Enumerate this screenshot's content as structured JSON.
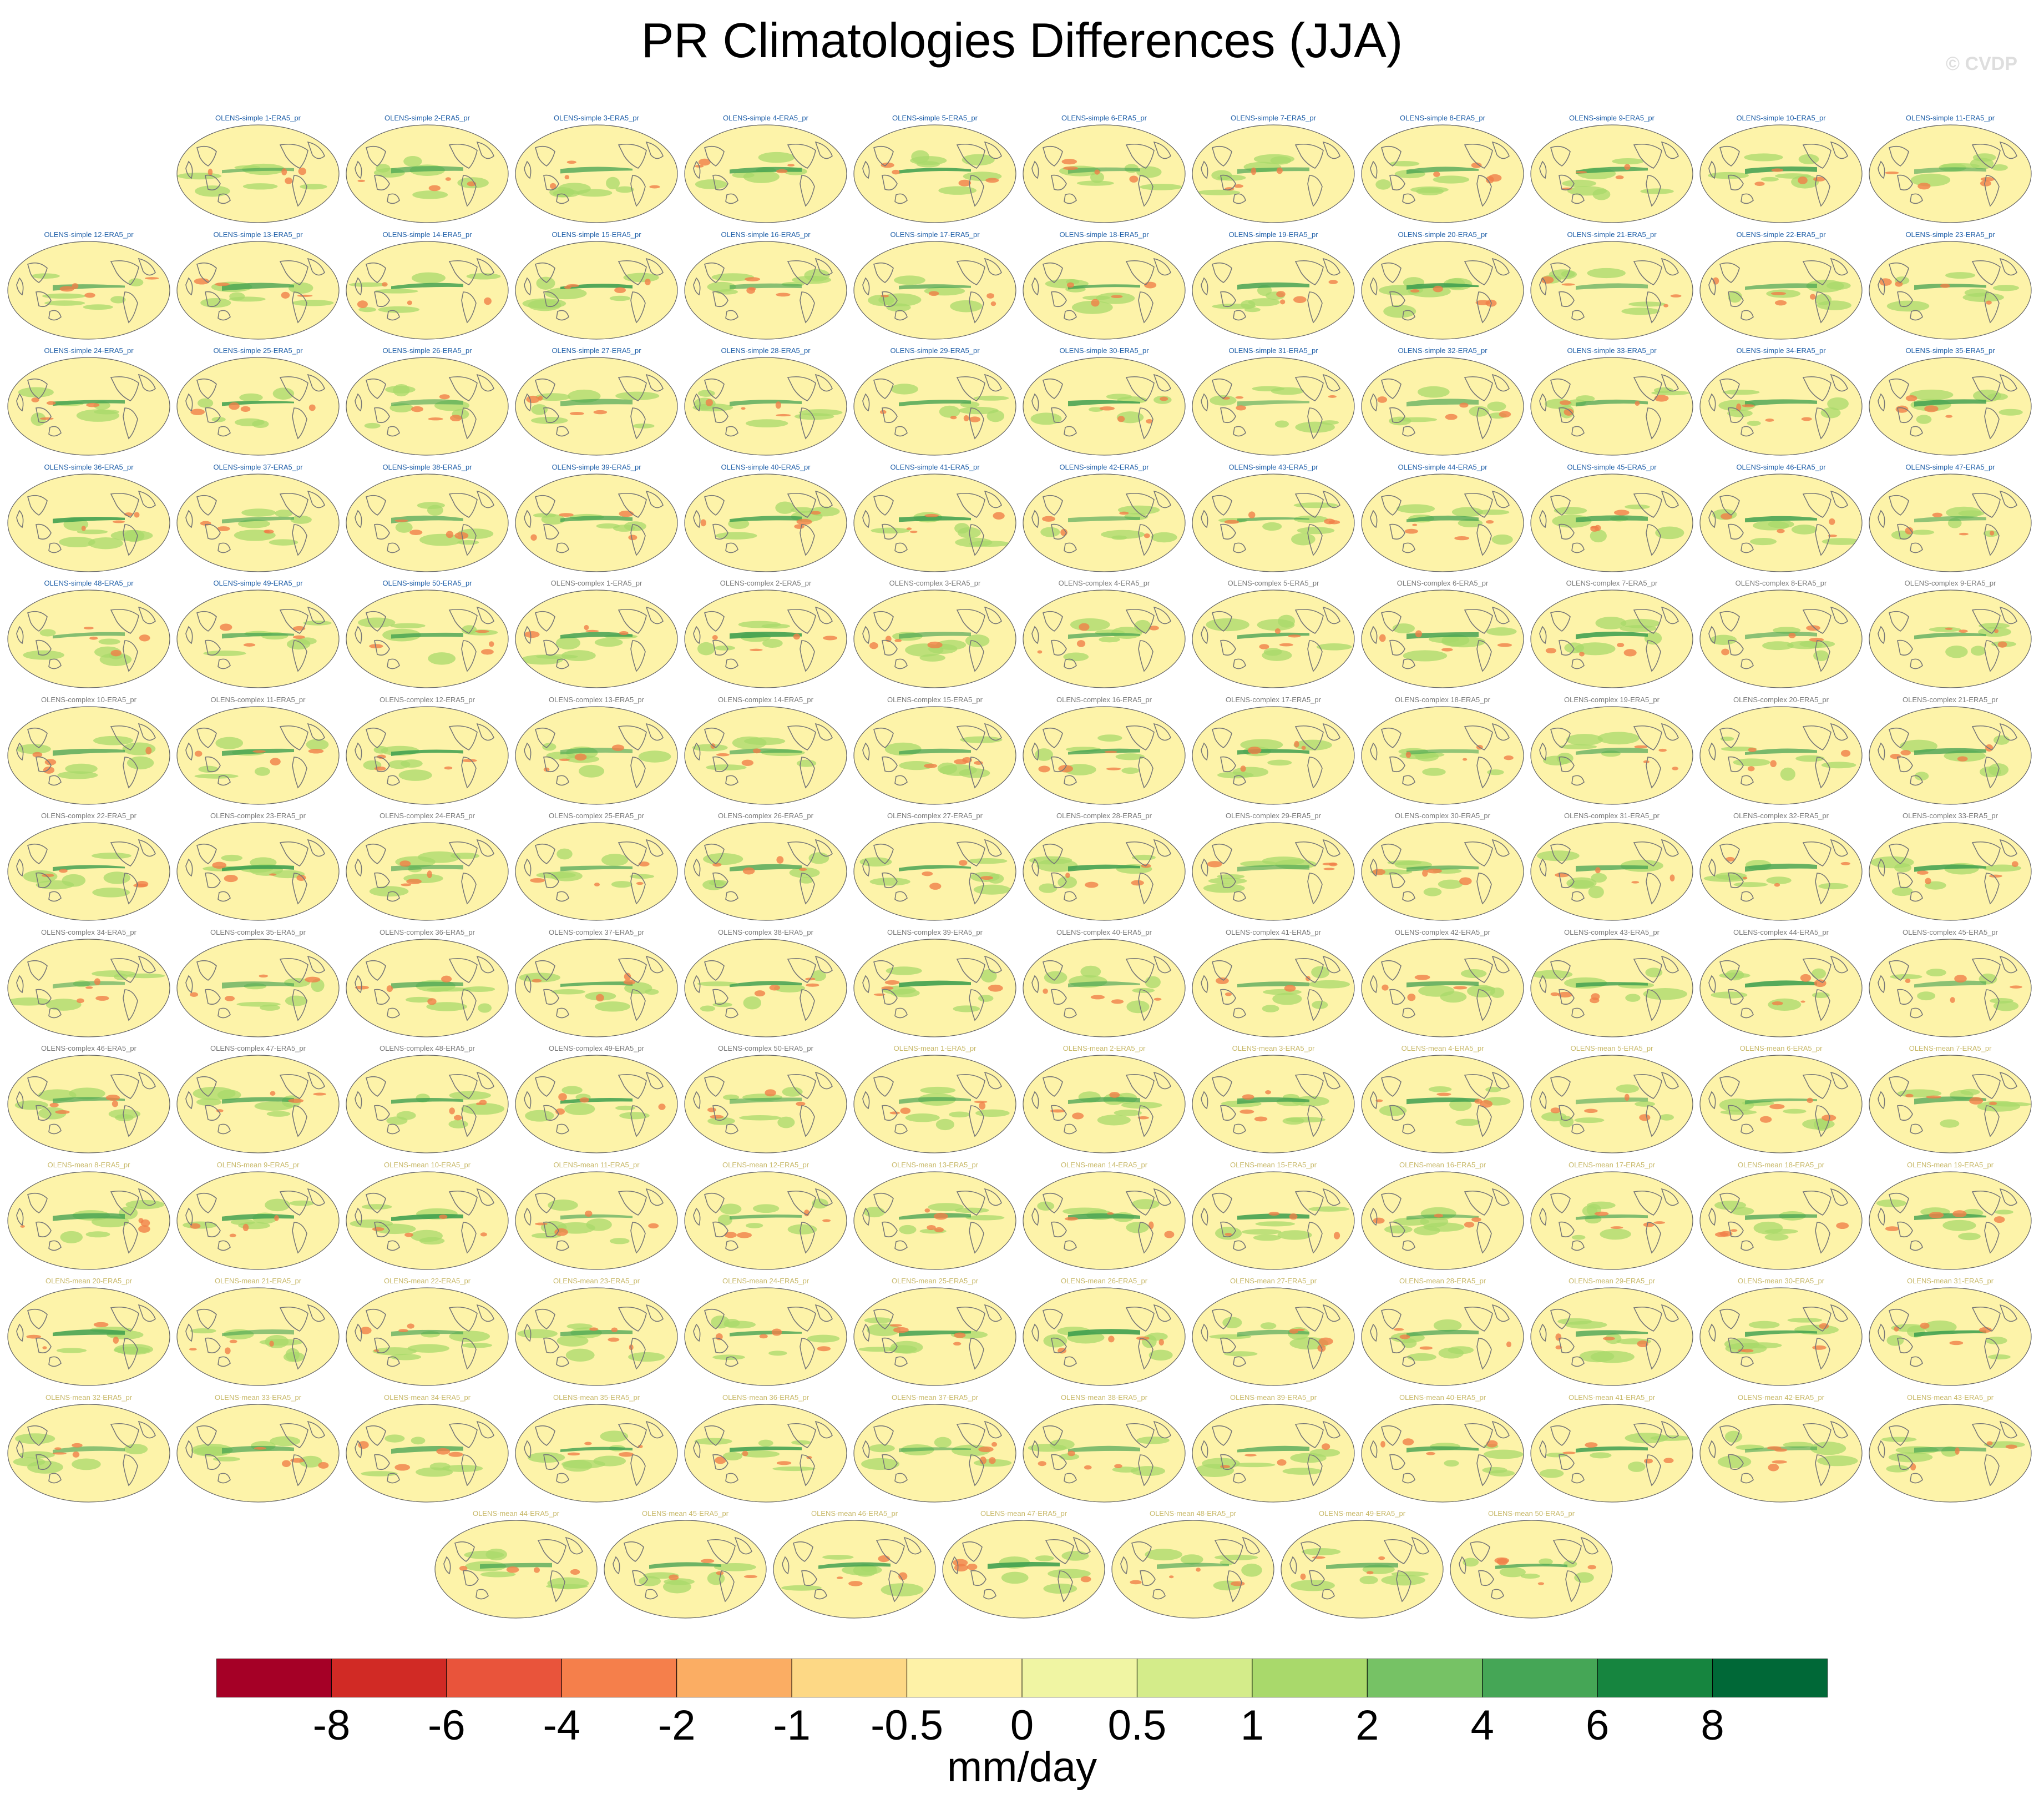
{
  "title": "PR Climatologies Differences (JJA)",
  "watermark": "© CVDP",
  "chart_data": {
    "type": "heatmap",
    "description_variable": "pr",
    "season": "JJA",
    "reference": "ERA5",
    "units": "mm/day",
    "colorbar": {
      "levels": [
        "-8",
        "-6",
        "-4",
        "-2",
        "-1",
        "-0.5",
        "0",
        "0.5",
        "1",
        "2",
        "4",
        "6",
        "8"
      ],
      "colors": [
        "#a50026",
        "#d12a25",
        "#e9543b",
        "#f57f4b",
        "#fbad63",
        "#fdd885",
        "#fef2a7",
        "#f0f5a3",
        "#d4ec8a",
        "#a9d96b",
        "#76c265",
        "#45a656",
        "#16853f",
        "#006837"
      ]
    },
    "panel_rows": [
      [
        "OLENS-simple 1-ERA5_pr",
        "OLENS-simple 2-ERA5_pr",
        "OLENS-simple 3-ERA5_pr",
        "OLENS-simple 4-ERA5_pr",
        "OLENS-simple 5-ERA5_pr",
        "OLENS-simple 6-ERA5_pr",
        "OLENS-simple 7-ERA5_pr",
        "OLENS-simple 8-ERA5_pr",
        "OLENS-simple 9-ERA5_pr",
        "OLENS-simple 10-ERA5_pr",
        "OLENS-simple 11-ERA5_pr"
      ],
      [
        "OLENS-simple 12-ERA5_pr",
        "OLENS-simple 13-ERA5_pr",
        "OLENS-simple 14-ERA5_pr",
        "OLENS-simple 15-ERA5_pr",
        "OLENS-simple 16-ERA5_pr",
        "OLENS-simple 17-ERA5_pr",
        "OLENS-simple 18-ERA5_pr",
        "OLENS-simple 19-ERA5_pr",
        "OLENS-simple 20-ERA5_pr",
        "OLENS-simple 21-ERA5_pr",
        "OLENS-simple 22-ERA5_pr",
        "OLENS-simple 23-ERA5_pr"
      ],
      [
        "OLENS-simple 24-ERA5_pr",
        "OLENS-simple 25-ERA5_pr",
        "OLENS-simple 26-ERA5_pr",
        "OLENS-simple 27-ERA5_pr",
        "OLENS-simple 28-ERA5_pr",
        "OLENS-simple 29-ERA5_pr",
        "OLENS-simple 30-ERA5_pr",
        "OLENS-simple 31-ERA5_pr",
        "OLENS-simple 32-ERA5_pr",
        "OLENS-simple 33-ERA5_pr",
        "OLENS-simple 34-ERA5_pr",
        "OLENS-simple 35-ERA5_pr"
      ],
      [
        "OLENS-simple 36-ERA5_pr",
        "OLENS-simple 37-ERA5_pr",
        "OLENS-simple 38-ERA5_pr",
        "OLENS-simple 39-ERA5_pr",
        "OLENS-simple 40-ERA5_pr",
        "OLENS-simple 41-ERA5_pr",
        "OLENS-simple 42-ERA5_pr",
        "OLENS-simple 43-ERA5_pr",
        "OLENS-simple 44-ERA5_pr",
        "OLENS-simple 45-ERA5_pr",
        "OLENS-simple 46-ERA5_pr",
        "OLENS-simple 47-ERA5_pr"
      ],
      [
        "OLENS-simple 48-ERA5_pr",
        "OLENS-simple 49-ERA5_pr",
        "OLENS-simple 50-ERA5_pr",
        "OLENS-complex 1-ERA5_pr",
        "OLENS-complex 2-ERA5_pr",
        "OLENS-complex 3-ERA5_pr",
        "OLENS-complex 4-ERA5_pr",
        "OLENS-complex 5-ERA5_pr",
        "OLENS-complex 6-ERA5_pr",
        "OLENS-complex 7-ERA5_pr",
        "OLENS-complex 8-ERA5_pr",
        "OLENS-complex 9-ERA5_pr"
      ],
      [
        "OLENS-complex 10-ERA5_pr",
        "OLENS-complex 11-ERA5_pr",
        "OLENS-complex 12-ERA5_pr",
        "OLENS-complex 13-ERA5_pr",
        "OLENS-complex 14-ERA5_pr",
        "OLENS-complex 15-ERA5_pr",
        "OLENS-complex 16-ERA5_pr",
        "OLENS-complex 17-ERA5_pr",
        "OLENS-complex 18-ERA5_pr",
        "OLENS-complex 19-ERA5_pr",
        "OLENS-complex 20-ERA5_pr",
        "OLENS-complex 21-ERA5_pr"
      ],
      [
        "OLENS-complex 22-ERA5_pr",
        "OLENS-complex 23-ERA5_pr",
        "OLENS-complex 24-ERA5_pr",
        "OLENS-complex 25-ERA5_pr",
        "OLENS-complex 26-ERA5_pr",
        "OLENS-complex 27-ERA5_pr",
        "OLENS-complex 28-ERA5_pr",
        "OLENS-complex 29-ERA5_pr",
        "OLENS-complex 30-ERA5_pr",
        "OLENS-complex 31-ERA5_pr",
        "OLENS-complex 32-ERA5_pr",
        "OLENS-complex 33-ERA5_pr"
      ],
      [
        "OLENS-complex 34-ERA5_pr",
        "OLENS-complex 35-ERA5_pr",
        "OLENS-complex 36-ERA5_pr",
        "OLENS-complex 37-ERA5_pr",
        "OLENS-complex 38-ERA5_pr",
        "OLENS-complex 39-ERA5_pr",
        "OLENS-complex 40-ERA5_pr",
        "OLENS-complex 41-ERA5_pr",
        "OLENS-complex 42-ERA5_pr",
        "OLENS-complex 43-ERA5_pr",
        "OLENS-complex 44-ERA5_pr",
        "OLENS-complex 45-ERA5_pr"
      ],
      [
        "OLENS-complex 46-ERA5_pr",
        "OLENS-complex 47-ERA5_pr",
        "OLENS-complex 48-ERA5_pr",
        "OLENS-complex 49-ERA5_pr",
        "OLENS-complex 50-ERA5_pr",
        "OLENS-mean 1-ERA5_pr",
        "OLENS-mean 2-ERA5_pr",
        "OLENS-mean 3-ERA5_pr",
        "OLENS-mean 4-ERA5_pr",
        "OLENS-mean 5-ERA5_pr",
        "OLENS-mean 6-ERA5_pr",
        "OLENS-mean 7-ERA5_pr"
      ],
      [
        "OLENS-mean 8-ERA5_pr",
        "OLENS-mean 9-ERA5_pr",
        "OLENS-mean 10-ERA5_pr",
        "OLENS-mean 11-ERA5_pr",
        "OLENS-mean 12-ERA5_pr",
        "OLENS-mean 13-ERA5_pr",
        "OLENS-mean 14-ERA5_pr",
        "OLENS-mean 15-ERA5_pr",
        "OLENS-mean 16-ERA5_pr",
        "OLENS-mean 17-ERA5_pr",
        "OLENS-mean 18-ERA5_pr",
        "OLENS-mean 19-ERA5_pr"
      ],
      [
        "OLENS-mean 20-ERA5_pr",
        "OLENS-mean 21-ERA5_pr",
        "OLENS-mean 22-ERA5_pr",
        "OLENS-mean 23-ERA5_pr",
        "OLENS-mean 24-ERA5_pr",
        "OLENS-mean 25-ERA5_pr",
        "OLENS-mean 26-ERA5_pr",
        "OLENS-mean 27-ERA5_pr",
        "OLENS-mean 28-ERA5_pr",
        "OLENS-mean 29-ERA5_pr",
        "OLENS-mean 30-ERA5_pr",
        "OLENS-mean 31-ERA5_pr"
      ],
      [
        "OLENS-mean 32-ERA5_pr",
        "OLENS-mean 33-ERA5_pr",
        "OLENS-mean 34-ERA5_pr",
        "OLENS-mean 35-ERA5_pr",
        "OLENS-mean 36-ERA5_pr",
        "OLENS-mean 37-ERA5_pr",
        "OLENS-mean 38-ERA5_pr",
        "OLENS-mean 39-ERA5_pr",
        "OLENS-mean 40-ERA5_pr",
        "OLENS-mean 41-ERA5_pr",
        "OLENS-mean 42-ERA5_pr",
        "OLENS-mean 43-ERA5_pr"
      ],
      [
        "OLENS-mean 44-ERA5_pr",
        "OLENS-mean 45-ERA5_pr",
        "OLENS-mean 46-ERA5_pr",
        "OLENS-mean 47-ERA5_pr",
        "OLENS-mean 48-ERA5_pr",
        "OLENS-mean 49-ERA5_pr",
        "OLENS-mean 50-ERA5_pr"
      ]
    ],
    "panel_colors": {
      "background": "#fdf3a9",
      "coastline": "#777777",
      "positive_band": "#3f9f4f",
      "positive_light": "#a8d96b",
      "negative": "#f08048"
    }
  }
}
